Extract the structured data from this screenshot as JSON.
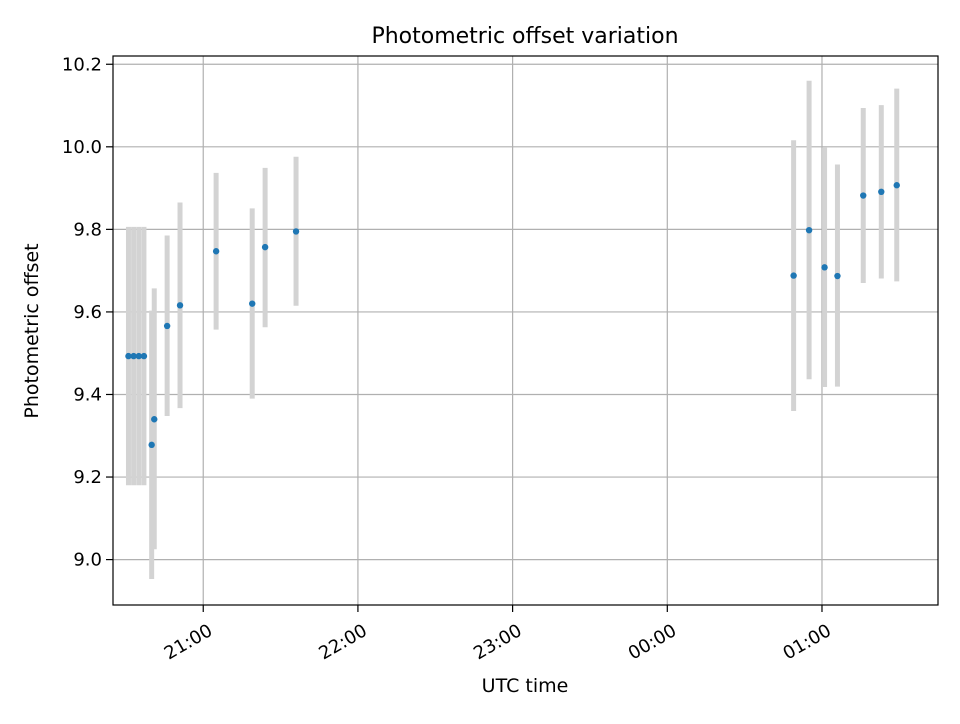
{
  "chart_data": {
    "type": "scatter",
    "title": "Photometric offset variation",
    "xlabel": "UTC time",
    "ylabel": "Photometric offset",
    "x_ticks": [
      "21:00",
      "22:00",
      "23:00",
      "00:00",
      "01:00"
    ],
    "y_ticks": [
      "9.0",
      "9.2",
      "9.4",
      "9.6",
      "9.8",
      "10.0",
      "10.2"
    ],
    "xlim": [
      "20:25",
      "01:45"
    ],
    "ylim": [
      8.89,
      10.22
    ],
    "grid": true,
    "marker_color": "#1f77b4",
    "errorbar_color": "#d3d3d3",
    "points": [
      {
        "time": "20:31",
        "offset": 9.493,
        "low": 9.18,
        "high": 9.806
      },
      {
        "time": "20:33",
        "offset": 9.493,
        "low": 9.18,
        "high": 9.806
      },
      {
        "time": "20:35",
        "offset": 9.493,
        "low": 9.18,
        "high": 9.806
      },
      {
        "time": "20:37",
        "offset": 9.493,
        "low": 9.18,
        "high": 9.806
      },
      {
        "time": "20:40",
        "offset": 9.278,
        "low": 8.953,
        "high": 9.603
      },
      {
        "time": "20:41",
        "offset": 9.34,
        "low": 9.025,
        "high": 9.657
      },
      {
        "time": "20:46",
        "offset": 9.566,
        "low": 9.348,
        "high": 9.785
      },
      {
        "time": "20:51",
        "offset": 9.616,
        "low": 9.367,
        "high": 9.865
      },
      {
        "time": "21:05",
        "offset": 9.747,
        "low": 9.557,
        "high": 9.937
      },
      {
        "time": "21:19",
        "offset": 9.62,
        "low": 9.39,
        "high": 9.851
      },
      {
        "time": "21:24",
        "offset": 9.757,
        "low": 9.563,
        "high": 9.949
      },
      {
        "time": "21:36",
        "offset": 9.795,
        "low": 9.615,
        "high": 9.976
      },
      {
        "time": "00:49",
        "offset": 9.688,
        "low": 9.36,
        "high": 10.016
      },
      {
        "time": "00:55",
        "offset": 9.798,
        "low": 9.437,
        "high": 10.16
      },
      {
        "time": "01:01",
        "offset": 9.708,
        "low": 9.418,
        "high": 9.998
      },
      {
        "time": "01:06",
        "offset": 9.687,
        "low": 9.419,
        "high": 9.957
      },
      {
        "time": "01:16",
        "offset": 9.882,
        "low": 9.67,
        "high": 10.094
      },
      {
        "time": "01:23",
        "offset": 9.891,
        "low": 9.681,
        "high": 10.101
      },
      {
        "time": "01:29",
        "offset": 9.907,
        "low": 9.674,
        "high": 10.141
      }
    ]
  }
}
